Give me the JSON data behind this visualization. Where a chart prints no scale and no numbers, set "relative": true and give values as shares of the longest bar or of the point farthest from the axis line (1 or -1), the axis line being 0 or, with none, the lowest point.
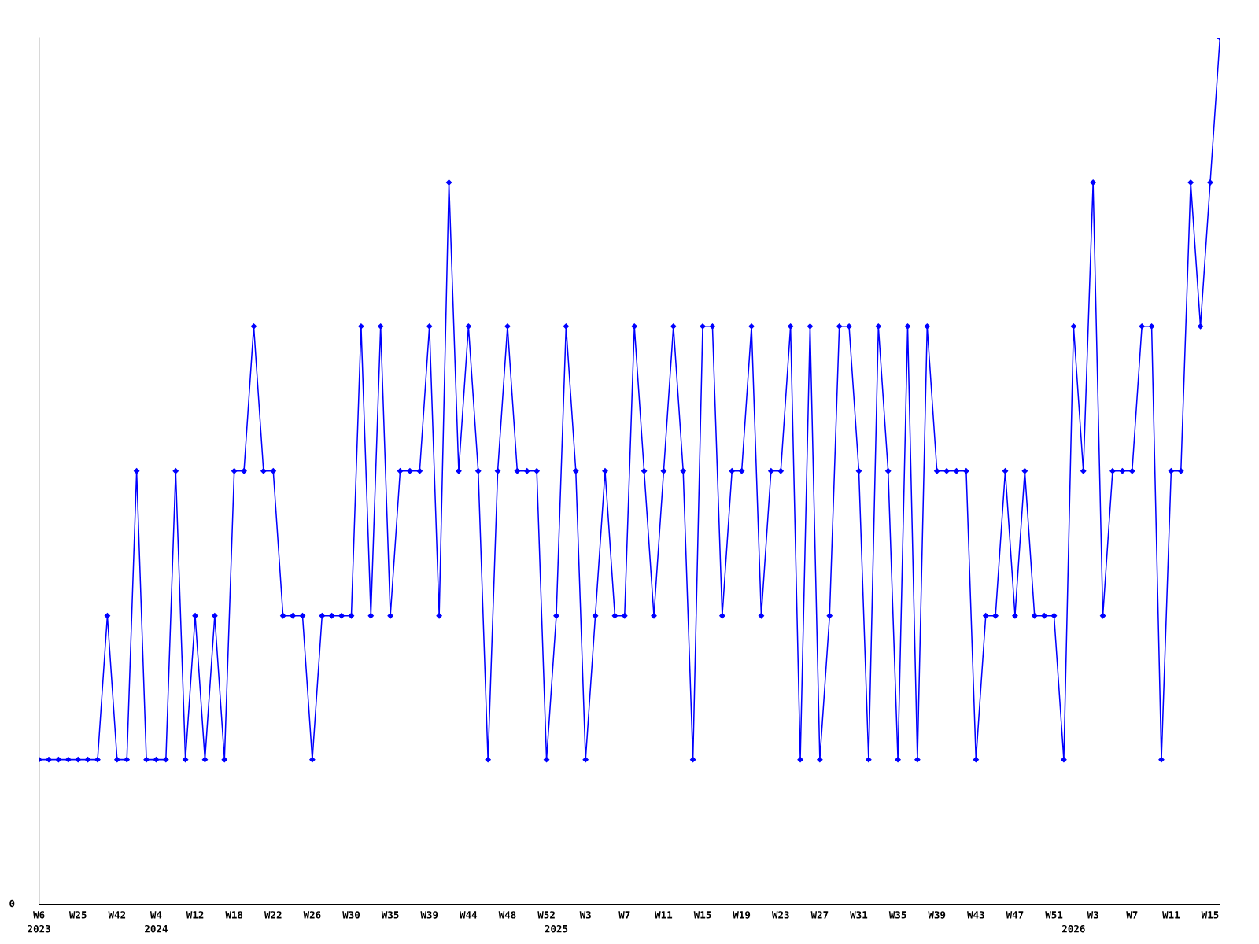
{
  "chart_data": {
    "type": "line",
    "relative": true,
    "marker": "diamond",
    "line_style": "solid",
    "grid": false,
    "legend": false,
    "categories": [
      "W6\n2023",
      null,
      null,
      null,
      "W25",
      null,
      null,
      null,
      "W42",
      null,
      null,
      null,
      "W4\n2024",
      null,
      null,
      null,
      "W12",
      null,
      null,
      null,
      "W18",
      null,
      null,
      null,
      "W22",
      null,
      null,
      null,
      "W26",
      null,
      null,
      null,
      "W30",
      null,
      null,
      null,
      "W35",
      null,
      null,
      null,
      "W39",
      null,
      null,
      null,
      "W44",
      null,
      null,
      null,
      "W48",
      null,
      null,
      null,
      "W52",
      "\n2025",
      null,
      null,
      "W3",
      null,
      null,
      null,
      "W7",
      null,
      null,
      null,
      "W11",
      null,
      null,
      null,
      "W15",
      null,
      null,
      null,
      "W19",
      null,
      null,
      null,
      "W23",
      null,
      null,
      null,
      "W27",
      null,
      null,
      null,
      "W31",
      null,
      null,
      null,
      "W35",
      null,
      null,
      null,
      "W39",
      null,
      null,
      null,
      "W43",
      null,
      null,
      null,
      "W47",
      null,
      null,
      null,
      "W51",
      null,
      "\n2026",
      null,
      "W3",
      null,
      null,
      null,
      "W7",
      null,
      null,
      null,
      "W11",
      null,
      null,
      null,
      "W15",
      null
    ],
    "series": [
      {
        "color": "#0000ff",
        "values": [
          0.167,
          0.167,
          0.167,
          0.167,
          0.167,
          0.167,
          0.167,
          0.333,
          0.167,
          0.167,
          0.5,
          0.167,
          0.167,
          0.167,
          0.5,
          0.167,
          0.333,
          0.167,
          0.333,
          0.167,
          0.5,
          0.5,
          0.667,
          0.5,
          0.5,
          0.333,
          0.333,
          0.333,
          0.167,
          0.333,
          0.333,
          0.333,
          0.333,
          0.667,
          0.333,
          0.667,
          0.333,
          0.5,
          0.5,
          0.5,
          0.667,
          0.333,
          0.833,
          0.5,
          0.667,
          0.5,
          0.167,
          0.5,
          0.667,
          0.5,
          0.5,
          0.5,
          0.167,
          0.333,
          0.667,
          0.5,
          0.167,
          0.333,
          0.5,
          0.333,
          0.333,
          0.667,
          0.5,
          0.333,
          0.5,
          0.667,
          0.5,
          0.167,
          0.667,
          0.667,
          0.333,
          0.5,
          0.5,
          0.667,
          0.333,
          0.5,
          0.5,
          0.667,
          0.167,
          0.667,
          0.167,
          0.333,
          0.667,
          0.667,
          0.5,
          0.167,
          0.667,
          0.5,
          0.167,
          0.667,
          0.167,
          0.667,
          0.5,
          0.5,
          0.5,
          0.5,
          0.167,
          0.333,
          0.333,
          0.5,
          0.333,
          0.5,
          0.333,
          0.333,
          0.333,
          0.167,
          0.667,
          0.5,
          0.833,
          0.333,
          0.5,
          0.5,
          0.5,
          0.667,
          0.667,
          0.167,
          0.5,
          0.5,
          0.833,
          0.667,
          0.833,
          1
        ]
      }
    ],
    "annotations": [
      "0"
    ]
  }
}
